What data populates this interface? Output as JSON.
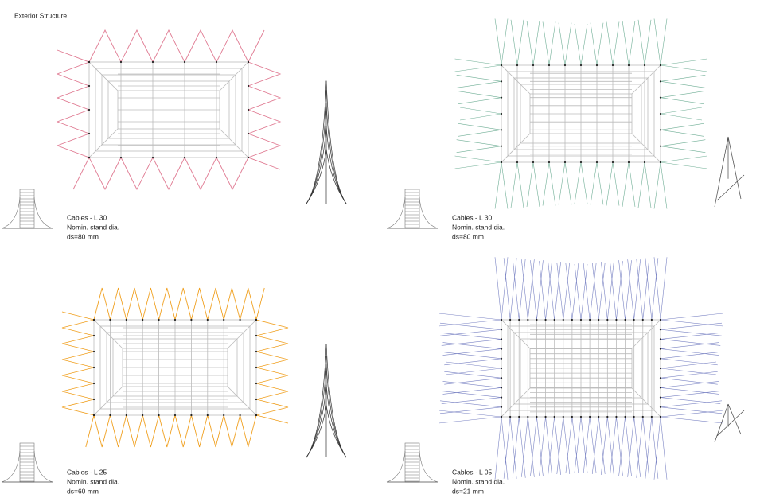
{
  "title": "Exterior Structure",
  "panels": [
    {
      "label": "Cables - L 30",
      "subtitle": "Nomin. stand dia.",
      "spec": "ds=80 mm"
    },
    {
      "label": "Cables - L 30",
      "subtitle": "Nomin. stand dia.",
      "spec": "ds=80 mm"
    },
    {
      "label": "Cables - L 25",
      "subtitle": "Nomin. stand dia.",
      "spec": "ds=60 mm"
    },
    {
      "label": "Cables - L 05",
      "subtitle": "Nomin. stand dia.",
      "spec": "ds=21 mm"
    }
  ]
}
